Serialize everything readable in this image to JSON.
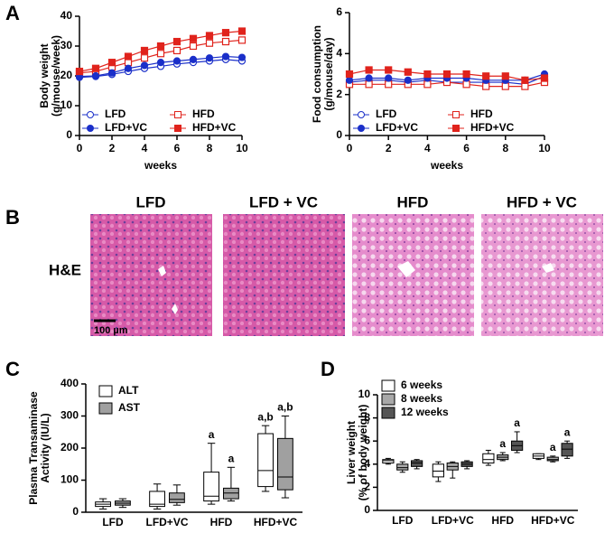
{
  "chart_data": [
    {
      "type": "line",
      "panel": "A",
      "y_label": [
        "Body weight",
        "(g/mouse/week)"
      ],
      "x_label": "weeks",
      "x": [
        0,
        1,
        2,
        3,
        4,
        5,
        6,
        7,
        8,
        9,
        10
      ],
      "xlim": [
        0,
        10
      ],
      "xticks": [
        0,
        2,
        4,
        6,
        8,
        10
      ],
      "ylim": [
        0,
        40
      ],
      "yticks": [
        0,
        10,
        20,
        30,
        40
      ],
      "series": [
        {
          "name": "LFD",
          "color": "#1a2fc9",
          "marker": "circle",
          "filled": false,
          "values": [
            19.5,
            19.8,
            20.5,
            21.5,
            22.5,
            23.2,
            24,
            24.5,
            25,
            25.5,
            25
          ]
        },
        {
          "name": "HFD",
          "color": "#e0231c",
          "marker": "square",
          "filled": false,
          "values": [
            21,
            21.5,
            23,
            24.5,
            26,
            27.5,
            28.5,
            30,
            31,
            31.5,
            32
          ]
        },
        {
          "name": "LFD+VC",
          "color": "#1a2fc9",
          "marker": "circle",
          "filled": true,
          "values": [
            19.8,
            20,
            21,
            22.5,
            23.5,
            24.5,
            25,
            25.5,
            26,
            26.5,
            26.2
          ]
        },
        {
          "name": "HFD+VC",
          "color": "#e0231c",
          "marker": "square",
          "filled": true,
          "values": [
            21.5,
            22.5,
            24.5,
            26.5,
            28.5,
            30,
            31.5,
            32.5,
            33.5,
            34.5,
            35
          ]
        }
      ]
    },
    {
      "type": "line",
      "y_label": [
        "Food consumption",
        "(g/mouse/day)"
      ],
      "x_label": "weeks",
      "x": [
        0,
        1,
        2,
        3,
        4,
        5,
        6,
        7,
        8,
        9,
        10
      ],
      "xlim": [
        0,
        10
      ],
      "xticks": [
        0,
        2,
        4,
        6,
        8,
        10
      ],
      "ylim": [
        0,
        6
      ],
      "yticks": [
        0,
        2,
        4,
        6
      ],
      "series": [
        {
          "name": "LFD",
          "color": "#1a2fc9",
          "marker": "circle",
          "filled": false,
          "values": [
            2.6,
            2.7,
            2.7,
            2.6,
            2.7,
            2.6,
            2.6,
            2.6,
            2.6,
            2.5,
            2.9
          ]
        },
        {
          "name": "HFD",
          "color": "#e0231c",
          "marker": "square",
          "filled": false,
          "values": [
            2.5,
            2.5,
            2.5,
            2.5,
            2.5,
            2.6,
            2.5,
            2.4,
            2.4,
            2.4,
            2.6
          ]
        },
        {
          "name": "LFD+VC",
          "color": "#1a2fc9",
          "marker": "circle",
          "filled": true,
          "values": [
            2.7,
            2.8,
            2.8,
            2.7,
            2.8,
            2.8,
            2.8,
            2.7,
            2.7,
            2.7,
            3.0
          ]
        },
        {
          "name": "HFD+VC",
          "color": "#e0231c",
          "marker": "square",
          "filled": true,
          "values": [
            3.0,
            3.2,
            3.2,
            3.1,
            3.0,
            3.0,
            3.0,
            2.9,
            2.9,
            2.7,
            2.8
          ]
        }
      ]
    },
    {
      "type": "box",
      "panel": "C",
      "y_label": [
        "Plasma Transaminase",
        "Activity (IU/L)"
      ],
      "categories": [
        "LFD",
        "LFD+VC",
        "HFD",
        "HFD+VC"
      ],
      "ylim": [
        0,
        400
      ],
      "yticks": [
        0,
        100,
        200,
        300,
        400
      ],
      "series": [
        {
          "name": "ALT",
          "color": "#ffffff",
          "values": [
            [
              10,
              18,
              25,
              32,
              42
            ],
            [
              10,
              18,
              25,
              65,
              88
            ],
            [
              25,
              35,
              50,
              125,
              215
            ],
            [
              65,
              80,
              130,
              245,
              270
            ]
          ],
          "labels": [
            null,
            null,
            "a",
            "a,b"
          ]
        },
        {
          "name": "AST",
          "color": "#a0a0a0",
          "values": [
            [
              15,
              22,
              28,
              35,
              42
            ],
            [
              22,
              30,
              40,
              60,
              85
            ],
            [
              35,
              42,
              60,
              75,
              140
            ],
            [
              45,
              70,
              110,
              230,
              300
            ]
          ],
          "labels": [
            null,
            null,
            "a",
            "a,b"
          ]
        }
      ]
    },
    {
      "type": "box",
      "panel": "D",
      "y_label": [
        "Liver weight",
        "(% of body weight)"
      ],
      "categories": [
        "LFD",
        "LFD+VC",
        "HFD",
        "HFD+VC"
      ],
      "ylim": [
        0,
        10
      ],
      "yticks": [
        0,
        2,
        4,
        6,
        8,
        10
      ],
      "series": [
        {
          "name": "6 weeks",
          "color": "#ffffff",
          "values": [
            [
              4.0,
              4.1,
              4.3,
              4.4,
              4.5
            ],
            [
              2.5,
              2.9,
              3.4,
              4.0,
              4.2
            ],
            [
              3.9,
              4.1,
              4.4,
              4.9,
              5.2
            ],
            [
              4.4,
              4.5,
              4.7,
              4.9,
              4.9
            ]
          ],
          "labels": [
            null,
            null,
            null,
            null
          ]
        },
        {
          "name": "8 weeks",
          "color": "#a8a8a8",
          "values": [
            [
              3.3,
              3.5,
              3.7,
              4.0,
              4.2
            ],
            [
              2.8,
              3.5,
              3.8,
              4.1,
              4.2
            ],
            [
              4.3,
              4.4,
              4.6,
              4.8,
              5.0
            ],
            [
              4.2,
              4.3,
              4.4,
              4.6,
              4.7
            ]
          ],
          "labels": [
            null,
            null,
            "a",
            "a"
          ]
        },
        {
          "name": "12 weeks",
          "color": "#555555",
          "values": [
            [
              3.6,
              3.8,
              4.1,
              4.3,
              4.4
            ],
            [
              3.6,
              3.8,
              4.0,
              4.2,
              4.3
            ],
            [
              5.0,
              5.2,
              5.6,
              6.0,
              6.8
            ],
            [
              4.5,
              4.7,
              5.3,
              5.8,
              6.0
            ]
          ],
          "labels": [
            null,
            null,
            "a",
            "a"
          ]
        }
      ]
    }
  ],
  "histology": {
    "panel": "B",
    "columns": [
      "LFD",
      "LFD + VC",
      "HFD",
      "HFD + VC"
    ],
    "row": "H&E",
    "scale_bar": "100 µm"
  }
}
